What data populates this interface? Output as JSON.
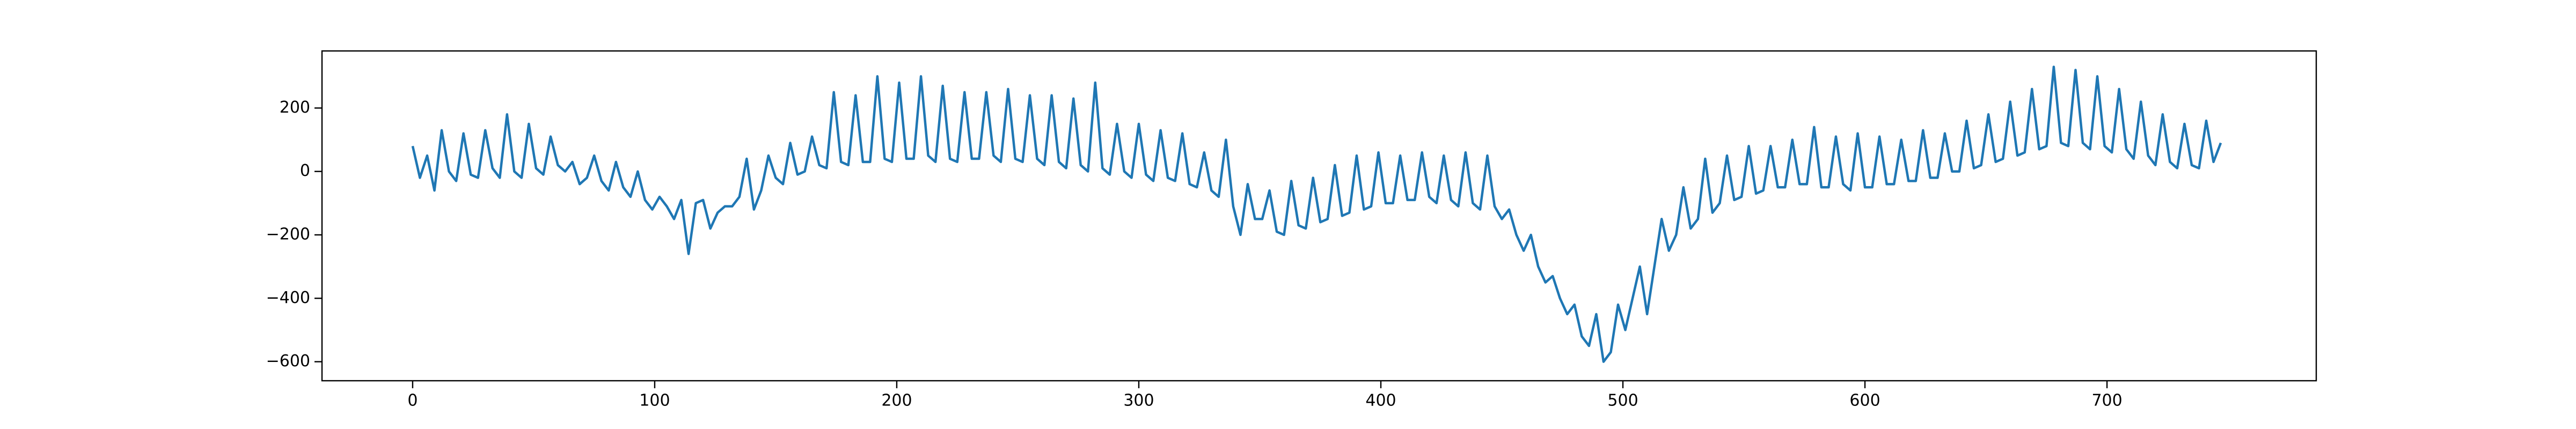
{
  "chart_data": {
    "type": "line",
    "color": "#1f77b4",
    "x": [
      0,
      3,
      6,
      9,
      12,
      15,
      18,
      21,
      24,
      27,
      30,
      33,
      36,
      39,
      42,
      45,
      48,
      51,
      54,
      57,
      60,
      63,
      66,
      69,
      72,
      75,
      78,
      81,
      84,
      87,
      90,
      93,
      96,
      99,
      102,
      105,
      108,
      111,
      114,
      117,
      120,
      123,
      126,
      129,
      132,
      135,
      138,
      141,
      144,
      147,
      150,
      153,
      156,
      159,
      162,
      165,
      168,
      171,
      174,
      177,
      180,
      183,
      186,
      189,
      192,
      195,
      198,
      201,
      204,
      207,
      210,
      213,
      216,
      219,
      222,
      225,
      228,
      231,
      234,
      237,
      240,
      243,
      246,
      249,
      252,
      255,
      258,
      261,
      264,
      267,
      270,
      273,
      276,
      279,
      282,
      285,
      288,
      291,
      294,
      297,
      300,
      303,
      306,
      309,
      312,
      315,
      318,
      321,
      324,
      327,
      330,
      333,
      336,
      339,
      342,
      345,
      348,
      351,
      354,
      357,
      360,
      363,
      366,
      369,
      372,
      375,
      378,
      381,
      384,
      387,
      390,
      393,
      396,
      399,
      402,
      405,
      408,
      411,
      414,
      417,
      420,
      423,
      426,
      429,
      432,
      435,
      438,
      441,
      444,
      447,
      450,
      453,
      456,
      459,
      462,
      465,
      468,
      471,
      474,
      477,
      480,
      483,
      486,
      489,
      492,
      495,
      498,
      501,
      504,
      507,
      510,
      513,
      516,
      519,
      522,
      525,
      528,
      531,
      534,
      537,
      540,
      543,
      546,
      549,
      552,
      555,
      558,
      561,
      564,
      567,
      570,
      573,
      576,
      579,
      582,
      585,
      588,
      591,
      594,
      597,
      600,
      603,
      606,
      609,
      612,
      615,
      618,
      621,
      624,
      627,
      630,
      633,
      636,
      639,
      642,
      645,
      648,
      651,
      654,
      657,
      660,
      663,
      666,
      669,
      672,
      675,
      678,
      681,
      684,
      687,
      690,
      693,
      696,
      699,
      702,
      705,
      708,
      711,
      714,
      717,
      720,
      723,
      726,
      729,
      732,
      735,
      738,
      741,
      744,
      747
    ],
    "values": [
      80,
      -20,
      50,
      -60,
      130,
      0,
      -30,
      120,
      -10,
      -20,
      130,
      10,
      -20,
      180,
      0,
      -20,
      150,
      10,
      -10,
      110,
      20,
      0,
      30,
      -40,
      -20,
      50,
      -30,
      -60,
      30,
      -50,
      -80,
      0,
      -90,
      -120,
      -80,
      -110,
      -150,
      -90,
      -260,
      -100,
      -90,
      -180,
      -130,
      -110,
      -110,
      -80,
      40,
      -120,
      -60,
      50,
      -20,
      -40,
      90,
      -10,
      0,
      110,
      20,
      10,
      250,
      30,
      20,
      240,
      30,
      30,
      300,
      40,
      30,
      280,
      40,
      40,
      300,
      50,
      30,
      270,
      40,
      30,
      250,
      40,
      40,
      250,
      50,
      30,
      260,
      40,
      30,
      240,
      40,
      20,
      240,
      30,
      10,
      230,
      20,
      0,
      280,
      10,
      -10,
      150,
      0,
      -20,
      150,
      -10,
      -30,
      130,
      -20,
      -30,
      120,
      -40,
      -50,
      60,
      -60,
      -80,
      100,
      -110,
      -200,
      -40,
      -150,
      -150,
      -60,
      -190,
      -200,
      -30,
      -170,
      -180,
      -20,
      -160,
      -150,
      20,
      -140,
      -130,
      50,
      -120,
      -110,
      60,
      -100,
      -100,
      50,
      -90,
      -90,
      60,
      -80,
      -100,
      50,
      -90,
      -110,
      60,
      -100,
      -120,
      50,
      -110,
      -150,
      -120,
      -200,
      -250,
      -200,
      -300,
      -350,
      -330,
      -400,
      -450,
      -420,
      -520,
      -550,
      -450,
      -600,
      -570,
      -420,
      -500,
      -400,
      -300,
      -450,
      -300,
      -150,
      -250,
      -200,
      -50,
      -180,
      -150,
      40,
      -130,
      -100,
      50,
      -90,
      -80,
      80,
      -70,
      -60,
      80,
      -50,
      -50,
      100,
      -40,
      -40,
      140,
      -50,
      -50,
      110,
      -40,
      -60,
      120,
      -50,
      -50,
      110,
      -40,
      -40,
      100,
      -30,
      -30,
      130,
      -20,
      -20,
      120,
      0,
      0,
      160,
      10,
      20,
      180,
      30,
      40,
      220,
      50,
      60,
      260,
      70,
      80,
      330,
      90,
      80,
      320,
      90,
      70,
      300,
      80,
      60,
      260,
      70,
      40,
      220,
      50,
      20,
      180,
      30,
      10,
      150,
      20,
      10,
      160,
      30,
      90
    ],
    "xlim": [
      -37.45,
      786.45
    ],
    "ylim": [
      -660,
      380
    ],
    "xticks": [
      0,
      100,
      200,
      300,
      400,
      500,
      600,
      700
    ],
    "yticks": [
      {
        "value": -600,
        "label": "−600"
      },
      {
        "value": -400,
        "label": "−400"
      },
      {
        "value": -200,
        "label": "−200"
      },
      0,
      200
    ]
  }
}
